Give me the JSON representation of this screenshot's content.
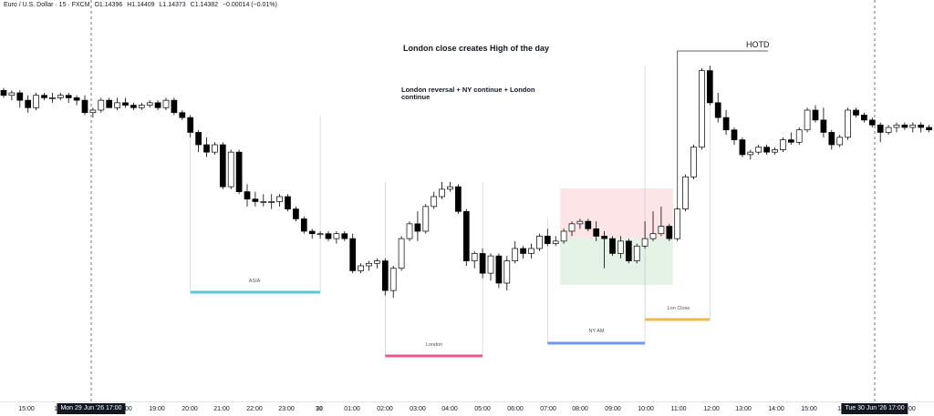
{
  "header": {
    "symbol": "Euro / U.S. Dollar · 15 · FXCM",
    "open": "O1.14396",
    "high": "H1.14409",
    "low": "L1.14373",
    "close": "C1.14382",
    "change": "−0.00014 (−0.01%)"
  },
  "annotations": {
    "title": "London close creates High of the day",
    "subtitle": "London reversal + NY continue + London continue",
    "hotd": "HOTD"
  },
  "sessions": [
    {
      "label": "ASIA",
      "color": "#5bc7d5"
    },
    {
      "label": "London",
      "color": "#e05b86"
    },
    {
      "label": "NY AM",
      "color": "#6f95f0"
    },
    {
      "label": "Lon Close",
      "color": "#f3b54d"
    }
  ],
  "zones": {
    "upper_color": "#fde5e7",
    "lower_color": "#e5f2e6"
  },
  "cursor_labels": [
    "Mon 29 Jun '26   17:00",
    "Tue 30 Jun '26   17:00"
  ],
  "axis_ticks": [
    "15:00",
    "16",
    "18:00",
    "19:00",
    "20:00",
    "21:00",
    "22:00",
    "23:00",
    "30",
    "01:00",
    "02:00",
    "03:00",
    "04:00",
    "05:00",
    "06:00",
    "07:00",
    "08:00",
    "09:00",
    "10:00",
    "11:00",
    "12:00",
    "13:00",
    "14:00",
    "15:00",
    "16",
    "18:00"
  ],
  "chart_data": {
    "type": "candlestick",
    "interval": "15m",
    "bull_color": "#ffffff",
    "bear_color": "#000000",
    "candles": [
      {
        "o": 1.1447,
        "h": 1.1448,
        "l": 1.1444,
        "c": 1.1445
      },
      {
        "o": 1.1445,
        "h": 1.1447,
        "l": 1.1443,
        "c": 1.1446
      },
      {
        "o": 1.1446,
        "h": 1.1447,
        "l": 1.144,
        "c": 1.1443
      },
      {
        "o": 1.1443,
        "h": 1.1445,
        "l": 1.1438,
        "c": 1.144
      },
      {
        "o": 1.144,
        "h": 1.1446,
        "l": 1.1439,
        "c": 1.1445
      },
      {
        "o": 1.1445,
        "h": 1.1446,
        "l": 1.1443,
        "c": 1.1444
      },
      {
        "o": 1.1444,
        "h": 1.1446,
        "l": 1.1442,
        "c": 1.1444
      },
      {
        "o": 1.1444,
        "h": 1.1446,
        "l": 1.1443,
        "c": 1.1445
      },
      {
        "o": 1.1445,
        "h": 1.1446,
        "l": 1.1442,
        "c": 1.1444
      },
      {
        "o": 1.1444,
        "h": 1.1445,
        "l": 1.1441,
        "c": 1.1443
      },
      {
        "o": 1.1443,
        "h": 1.1445,
        "l": 1.1437,
        "c": 1.1438
      },
      {
        "o": 1.1438,
        "h": 1.144,
        "l": 1.1436,
        "c": 1.1439
      },
      {
        "o": 1.1439,
        "h": 1.1444,
        "l": 1.1438,
        "c": 1.1443
      },
      {
        "o": 1.1443,
        "h": 1.1444,
        "l": 1.144,
        "c": 1.144
      },
      {
        "o": 1.144,
        "h": 1.1444,
        "l": 1.1439,
        "c": 1.1442
      },
      {
        "o": 1.1442,
        "h": 1.1444,
        "l": 1.144,
        "c": 1.1441
      },
      {
        "o": 1.1441,
        "h": 1.1442,
        "l": 1.1439,
        "c": 1.144
      },
      {
        "o": 1.144,
        "h": 1.1442,
        "l": 1.1439,
        "c": 1.1441
      },
      {
        "o": 1.1441,
        "h": 1.1443,
        "l": 1.144,
        "c": 1.1442
      },
      {
        "o": 1.1442,
        "h": 1.1443,
        "l": 1.1439,
        "c": 1.144
      },
      {
        "o": 1.144,
        "h": 1.1444,
        "l": 1.1439,
        "c": 1.1443
      },
      {
        "o": 1.1443,
        "h": 1.1444,
        "l": 1.1437,
        "c": 1.1438
      },
      {
        "o": 1.1438,
        "h": 1.1439,
        "l": 1.1435,
        "c": 1.1436
      },
      {
        "o": 1.1436,
        "h": 1.1437,
        "l": 1.1428,
        "c": 1.143
      },
      {
        "o": 1.143,
        "h": 1.1431,
        "l": 1.1422,
        "c": 1.1425
      },
      {
        "o": 1.1425,
        "h": 1.1428,
        "l": 1.142,
        "c": 1.1422
      },
      {
        "o": 1.1422,
        "h": 1.1426,
        "l": 1.1421,
        "c": 1.1425
      },
      {
        "o": 1.1425,
        "h": 1.1426,
        "l": 1.1407,
        "c": 1.1408
      },
      {
        "o": 1.1408,
        "h": 1.1423,
        "l": 1.1407,
        "c": 1.1422
      },
      {
        "o": 1.1422,
        "h": 1.1423,
        "l": 1.1405,
        "c": 1.1406
      },
      {
        "o": 1.1406,
        "h": 1.1409,
        "l": 1.14,
        "c": 1.1403
      },
      {
        "o": 1.1403,
        "h": 1.1406,
        "l": 1.14,
        "c": 1.1402
      },
      {
        "o": 1.1402,
        "h": 1.1405,
        "l": 1.14,
        "c": 1.1402
      },
      {
        "o": 1.1402,
        "h": 1.1405,
        "l": 1.1399,
        "c": 1.1402
      },
      {
        "o": 1.1402,
        "h": 1.1405,
        "l": 1.14,
        "c": 1.1404
      },
      {
        "o": 1.1404,
        "h": 1.1405,
        "l": 1.1398,
        "c": 1.1399
      },
      {
        "o": 1.1399,
        "h": 1.14,
        "l": 1.1394,
        "c": 1.1395
      },
      {
        "o": 1.1395,
        "h": 1.1396,
        "l": 1.1389,
        "c": 1.139
      },
      {
        "o": 1.139,
        "h": 1.1391,
        "l": 1.1387,
        "c": 1.1389
      },
      {
        "o": 1.1389,
        "h": 1.139,
        "l": 1.1387,
        "c": 1.1389
      },
      {
        "o": 1.1389,
        "h": 1.139,
        "l": 1.1386,
        "c": 1.1387
      },
      {
        "o": 1.1387,
        "h": 1.139,
        "l": 1.1385,
        "c": 1.1389
      },
      {
        "o": 1.1389,
        "h": 1.139,
        "l": 1.1386,
        "c": 1.1387
      },
      {
        "o": 1.1387,
        "h": 1.1389,
        "l": 1.1373,
        "c": 1.1374
      },
      {
        "o": 1.1374,
        "h": 1.1377,
        "l": 1.1373,
        "c": 1.1376
      },
      {
        "o": 1.1376,
        "h": 1.1378,
        "l": 1.1374,
        "c": 1.1377
      },
      {
        "o": 1.1377,
        "h": 1.1379,
        "l": 1.1375,
        "c": 1.1378
      },
      {
        "o": 1.1378,
        "h": 1.1379,
        "l": 1.1364,
        "c": 1.1366
      },
      {
        "o": 1.1366,
        "h": 1.1376,
        "l": 1.1363,
        "c": 1.1375
      },
      {
        "o": 1.1375,
        "h": 1.1388,
        "l": 1.1374,
        "c": 1.1387
      },
      {
        "o": 1.1387,
        "h": 1.1394,
        "l": 1.1386,
        "c": 1.1393
      },
      {
        "o": 1.1393,
        "h": 1.1398,
        "l": 1.1386,
        "c": 1.139
      },
      {
        "o": 1.139,
        "h": 1.1401,
        "l": 1.1389,
        "c": 1.14
      },
      {
        "o": 1.14,
        "h": 1.1406,
        "l": 1.1399,
        "c": 1.1404
      },
      {
        "o": 1.1404,
        "h": 1.141,
        "l": 1.1403,
        "c": 1.1407
      },
      {
        "o": 1.1407,
        "h": 1.141,
        "l": 1.1406,
        "c": 1.1408
      },
      {
        "o": 1.1408,
        "h": 1.1409,
        "l": 1.1397,
        "c": 1.1398
      },
      {
        "o": 1.1398,
        "h": 1.1399,
        "l": 1.1376,
        "c": 1.1378
      },
      {
        "o": 1.1378,
        "h": 1.1382,
        "l": 1.1375,
        "c": 1.1381
      },
      {
        "o": 1.1381,
        "h": 1.1383,
        "l": 1.1371,
        "c": 1.1373
      },
      {
        "o": 1.1373,
        "h": 1.1381,
        "l": 1.137,
        "c": 1.138
      },
      {
        "o": 1.138,
        "h": 1.1381,
        "l": 1.1367,
        "c": 1.1369
      },
      {
        "o": 1.1369,
        "h": 1.138,
        "l": 1.1366,
        "c": 1.1378
      },
      {
        "o": 1.1378,
        "h": 1.1386,
        "l": 1.1377,
        "c": 1.1383
      },
      {
        "o": 1.1383,
        "h": 1.1384,
        "l": 1.1379,
        "c": 1.1381
      },
      {
        "o": 1.1381,
        "h": 1.1385,
        "l": 1.1379,
        "c": 1.1383
      },
      {
        "o": 1.1383,
        "h": 1.1389,
        "l": 1.1382,
        "c": 1.1388
      },
      {
        "o": 1.1388,
        "h": 1.1391,
        "l": 1.1384,
        "c": 1.1385
      },
      {
        "o": 1.1385,
        "h": 1.1388,
        "l": 1.1384,
        "c": 1.1386
      },
      {
        "o": 1.1386,
        "h": 1.1391,
        "l": 1.1385,
        "c": 1.139
      },
      {
        "o": 1.139,
        "h": 1.1394,
        "l": 1.1388,
        "c": 1.1393
      },
      {
        "o": 1.1393,
        "h": 1.1395,
        "l": 1.1391,
        "c": 1.1394
      },
      {
        "o": 1.1394,
        "h": 1.1395,
        "l": 1.139,
        "c": 1.1391
      },
      {
        "o": 1.1391,
        "h": 1.1394,
        "l": 1.1386,
        "c": 1.1388
      },
      {
        "o": 1.1388,
        "h": 1.139,
        "l": 1.1375,
        "c": 1.1387
      },
      {
        "o": 1.1387,
        "h": 1.1388,
        "l": 1.138,
        "c": 1.1381
      },
      {
        "o": 1.1381,
        "h": 1.1388,
        "l": 1.1379,
        "c": 1.1386
      },
      {
        "o": 1.1386,
        "h": 1.1387,
        "l": 1.1377,
        "c": 1.1378
      },
      {
        "o": 1.1378,
        "h": 1.1385,
        "l": 1.1377,
        "c": 1.1384
      },
      {
        "o": 1.1384,
        "h": 1.1394,
        "l": 1.1383,
        "c": 1.1387
      },
      {
        "o": 1.1387,
        "h": 1.1398,
        "l": 1.1386,
        "c": 1.1389
      },
      {
        "o": 1.1389,
        "h": 1.14,
        "l": 1.1388,
        "c": 1.1392
      },
      {
        "o": 1.1392,
        "h": 1.1393,
        "l": 1.1386,
        "c": 1.1387
      },
      {
        "o": 1.1387,
        "h": 1.14,
        "l": 1.1386,
        "c": 1.1399
      },
      {
        "o": 1.1399,
        "h": 1.1413,
        "l": 1.1398,
        "c": 1.1412
      },
      {
        "o": 1.1412,
        "h": 1.1425,
        "l": 1.1411,
        "c": 1.1424
      },
      {
        "o": 1.1424,
        "h": 1.1456,
        "l": 1.1423,
        "c": 1.1455
      },
      {
        "o": 1.1455,
        "h": 1.1457,
        "l": 1.1441,
        "c": 1.1442
      },
      {
        "o": 1.1442,
        "h": 1.1446,
        "l": 1.1434,
        "c": 1.1436
      },
      {
        "o": 1.1436,
        "h": 1.1439,
        "l": 1.1429,
        "c": 1.1431
      },
      {
        "o": 1.1431,
        "h": 1.1432,
        "l": 1.1425,
        "c": 1.1427
      },
      {
        "o": 1.1427,
        "h": 1.1428,
        "l": 1.142,
        "c": 1.1421
      },
      {
        "o": 1.1421,
        "h": 1.1423,
        "l": 1.1419,
        "c": 1.1422
      },
      {
        "o": 1.1422,
        "h": 1.1425,
        "l": 1.1421,
        "c": 1.1424
      },
      {
        "o": 1.1424,
        "h": 1.1425,
        "l": 1.1421,
        "c": 1.1422
      },
      {
        "o": 1.1422,
        "h": 1.1424,
        "l": 1.1421,
        "c": 1.1423
      },
      {
        "o": 1.1423,
        "h": 1.1428,
        "l": 1.1422,
        "c": 1.1427
      },
      {
        "o": 1.1427,
        "h": 1.143,
        "l": 1.1425,
        "c": 1.1426
      },
      {
        "o": 1.1426,
        "h": 1.1432,
        "l": 1.1425,
        "c": 1.1431
      },
      {
        "o": 1.1431,
        "h": 1.144,
        "l": 1.143,
        "c": 1.1439
      },
      {
        "o": 1.1439,
        "h": 1.1441,
        "l": 1.1434,
        "c": 1.1435
      },
      {
        "o": 1.1435,
        "h": 1.144,
        "l": 1.1428,
        "c": 1.143
      },
      {
        "o": 1.143,
        "h": 1.1431,
        "l": 1.1423,
        "c": 1.1425
      },
      {
        "o": 1.1425,
        "h": 1.1429,
        "l": 1.1424,
        "c": 1.1428
      },
      {
        "o": 1.1428,
        "h": 1.144,
        "l": 1.1427,
        "c": 1.1439
      },
      {
        "o": 1.1439,
        "h": 1.144,
        "l": 1.1436,
        "c": 1.1437
      },
      {
        "o": 1.1437,
        "h": 1.1438,
        "l": 1.1434,
        "c": 1.1435
      },
      {
        "o": 1.1435,
        "h": 1.1436,
        "l": 1.1432,
        "c": 1.1433
      },
      {
        "o": 1.1433,
        "h": 1.1434,
        "l": 1.1426,
        "c": 1.143
      },
      {
        "o": 1.143,
        "h": 1.1433,
        "l": 1.1429,
        "c": 1.1432
      },
      {
        "o": 1.1432,
        "h": 1.1434,
        "l": 1.143,
        "c": 1.1433
      },
      {
        "o": 1.1433,
        "h": 1.1434,
        "l": 1.1431,
        "c": 1.1432
      },
      {
        "o": 1.1432,
        "h": 1.1434,
        "l": 1.143,
        "c": 1.1433
      },
      {
        "o": 1.1433,
        "h": 1.1434,
        "l": 1.143,
        "c": 1.1432
      },
      {
        "o": 1.1432,
        "h": 1.1433,
        "l": 1.143,
        "c": 1.1431
      }
    ]
  }
}
